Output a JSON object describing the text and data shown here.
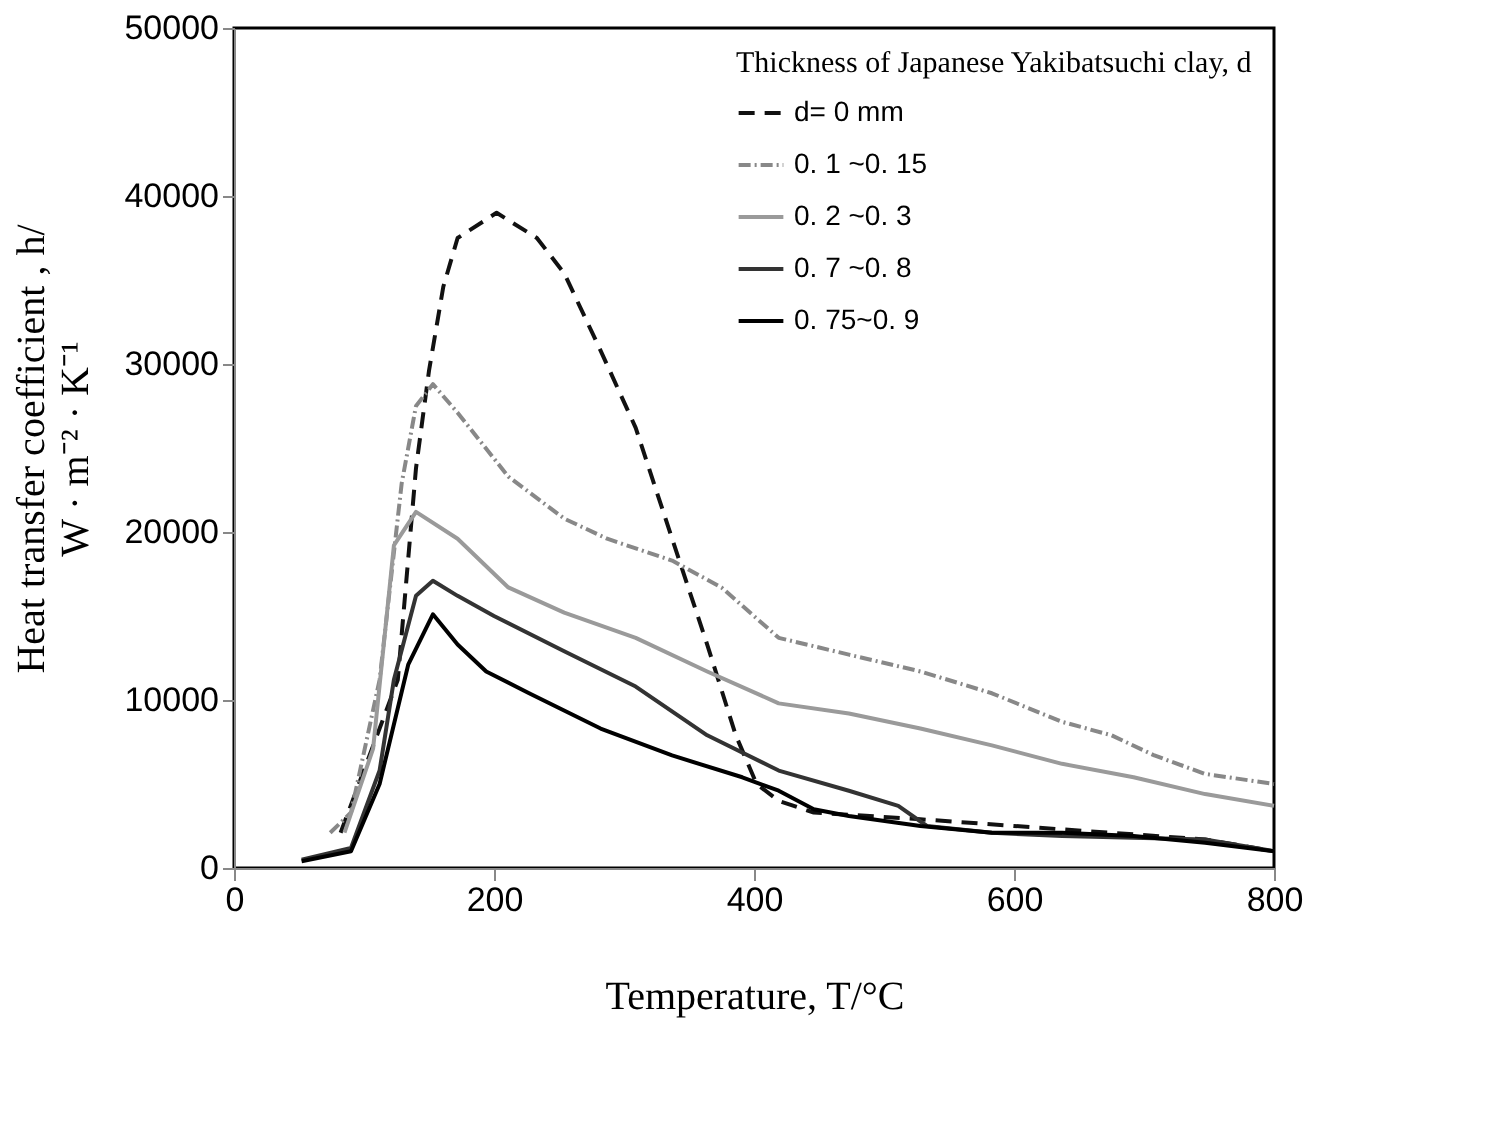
{
  "chart_data": {
    "type": "line",
    "xlabel": "Temperature, T/°C",
    "ylabel": "Heat transfer coefficient , h/\nW · m⁻² · K⁻¹",
    "legend_title": "Thickness of Japanese Yakibatsuchi clay, d",
    "xlim": [
      0,
      800
    ],
    "xticks": [
      0,
      200,
      400,
      600,
      800
    ],
    "ylim": [
      0,
      50000
    ],
    "yticks": [
      0,
      10000,
      20000,
      30000,
      40000,
      50000
    ],
    "grid": false,
    "legend": "top right",
    "marker": "none",
    "series": [
      {
        "name": "d= 0 mm",
        "color": "#111111",
        "line_style": "dashed",
        "x": [
          82,
          126,
          140,
          150,
          161,
          172,
          202,
          233,
          254,
          282,
          309,
          337,
          364,
          386,
          402,
          419,
          446,
          528,
          637,
          747,
          800
        ],
        "values": [
          2100,
          11200,
          23800,
          29600,
          34600,
          37500,
          39000,
          37500,
          35400,
          30800,
          26200,
          19600,
          13300,
          7900,
          5000,
          4000,
          3300,
          2900,
          2300,
          1700,
          1000
        ]
      },
      {
        "name": "0. 1 ~0. 15",
        "color": "#888888",
        "line_style": "dotted",
        "x": [
          74,
          90,
          112,
          129,
          140,
          153,
          172,
          211,
          254,
          287,
          337,
          375,
          419,
          473,
          528,
          583,
          637,
          675,
          708,
          747,
          800
        ],
        "values": [
          2100,
          3300,
          11200,
          22900,
          27500,
          28800,
          27100,
          23300,
          20800,
          19600,
          18300,
          16700,
          13700,
          12700,
          11700,
          10400,
          8700,
          7900,
          6700,
          5600,
          5000
        ]
      },
      {
        "name": "0. 2 ~0. 3",
        "color": "#9a9a9a",
        "line_style": "solid",
        "x": [
          85,
          107,
          123,
          140,
          172,
          211,
          254,
          309,
          364,
          419,
          473,
          528,
          583,
          637,
          692,
          747,
          800
        ],
        "values": [
          2100,
          7100,
          19200,
          21200,
          19600,
          16700,
          15200,
          13700,
          11700,
          9800,
          9200,
          8300,
          7300,
          6200,
          5400,
          4400,
          3700
        ]
      },
      {
        "name": "0. 7 ~0. 8",
        "color": "#333333",
        "line_style": "solid",
        "x": [
          52,
          90,
          112,
          123,
          140,
          153,
          172,
          200,
          254,
          309,
          364,
          419,
          473,
          511,
          533,
          583,
          637,
          747,
          800
        ],
        "values": [
          500,
          1200,
          5800,
          11200,
          16200,
          17100,
          16200,
          15000,
          12900,
          10800,
          7900,
          5800,
          4600,
          3700,
          2500,
          2100,
          1900,
          1700,
          1000
        ]
      },
      {
        "name": "0. 75~0. 9",
        "color": "#000000",
        "line_style": "solid",
        "x": [
          52,
          90,
          112,
          134,
          153,
          172,
          194,
          227,
          282,
          337,
          391,
          419,
          446,
          473,
          528,
          583,
          637,
          692,
          747,
          800
        ],
        "values": [
          400,
          1000,
          5000,
          12100,
          15100,
          13300,
          11700,
          10400,
          8300,
          6700,
          5400,
          4600,
          3500,
          3100,
          2500,
          2100,
          2100,
          1900,
          1500,
          1000
        ]
      }
    ]
  }
}
